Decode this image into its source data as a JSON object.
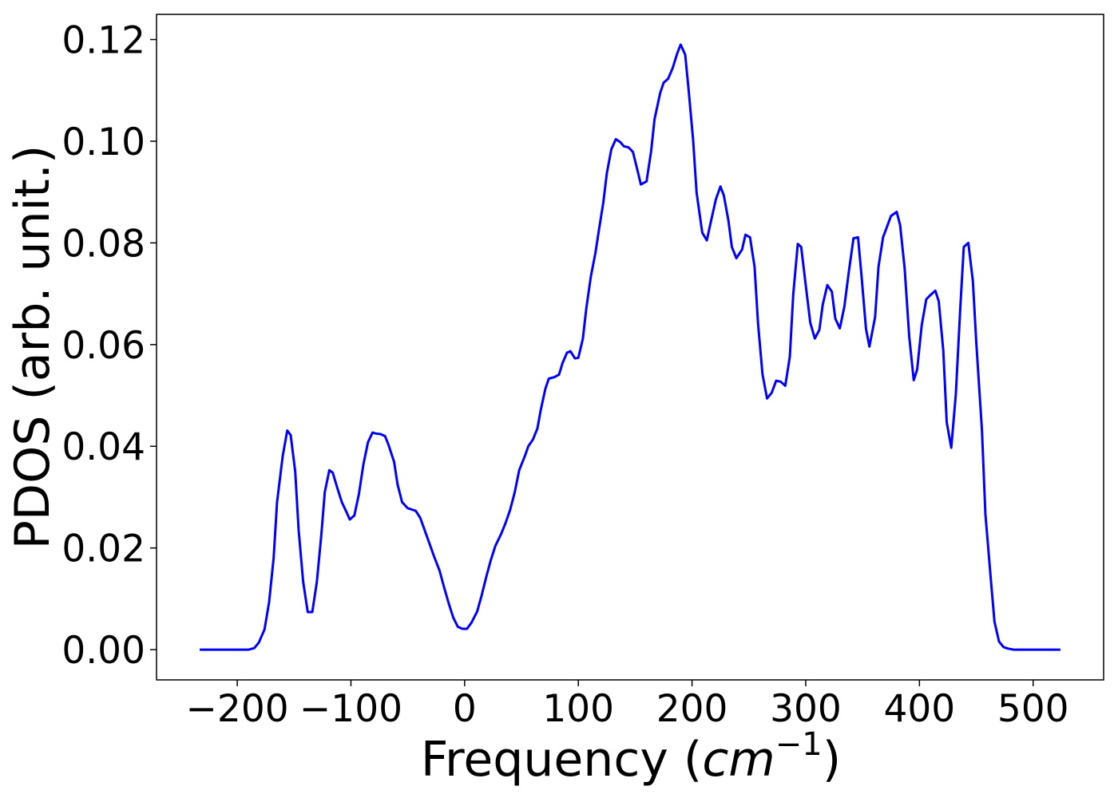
{
  "chart_data": {
    "type": "line",
    "xlabel": [
      "Frequency (",
      "cm",
      "−1",
      ")"
    ],
    "ylabel": "PDOS (arb. unit.)",
    "xlim": [
      -271,
      562
    ],
    "ylim": [
      -0.00595,
      0.12495
    ],
    "xticks": [
      {
        "value": -200,
        "label": "−200"
      },
      {
        "value": -100,
        "label": "−100"
      },
      0,
      100,
      200,
      300,
      400,
      500
    ],
    "yticks": [
      {
        "value": 0,
        "label": "0.00"
      },
      {
        "value": 0.02,
        "label": "0.02"
      },
      {
        "value": 0.04,
        "label": "0.04"
      },
      {
        "value": 0.06,
        "label": "0.06"
      },
      {
        "value": 0.08,
        "label": "0.08"
      },
      {
        "value": 0.1,
        "label": "0.10"
      },
      {
        "value": 0.12,
        "label": "0.12"
      }
    ],
    "grid": false,
    "x": [
      -233,
      -190,
      -185,
      -181,
      -176,
      -172,
      -168,
      -165,
      -160,
      -156,
      -153,
      -149,
      -146,
      -142,
      -138,
      -134,
      -130,
      -126,
      -123,
      -119,
      -116,
      -112,
      -108,
      -104,
      -101,
      -97,
      -93,
      -89,
      -85,
      -81,
      -78,
      -74,
      -70,
      -67,
      -62,
      -59,
      -55,
      -50,
      -47,
      -43,
      -39,
      -35,
      -31,
      -27,
      -22,
      -18,
      -14,
      -10,
      -6,
      -2,
      2,
      6,
      11,
      15,
      19,
      23,
      27,
      32,
      36,
      40,
      44,
      48,
      53,
      56,
      60,
      64,
      67,
      71,
      74,
      79,
      83,
      86,
      90,
      93,
      97,
      100,
      104,
      107,
      111,
      115,
      118,
      122,
      125,
      129,
      133,
      137,
      140,
      144,
      148,
      151,
      155,
      160,
      164,
      167,
      172,
      175,
      179,
      183,
      187,
      190,
      194,
      197,
      201,
      204,
      209,
      213,
      216,
      221,
      225,
      228,
      232,
      235,
      239,
      244,
      247,
      251,
      255,
      258,
      262,
      266,
      270,
      274,
      278,
      282,
      286,
      289,
      293,
      296,
      300,
      304,
      308,
      312,
      315,
      319,
      323,
      326,
      330,
      334,
      338,
      342,
      346,
      349,
      353,
      356,
      361,
      364,
      368,
      372,
      375,
      380,
      383,
      387,
      391,
      395,
      398,
      402,
      406,
      409,
      414,
      417,
      421,
      424,
      428,
      432,
      436,
      439,
      443,
      447,
      450,
      455,
      458,
      463,
      466,
      470,
      474,
      478,
      483,
      524
    ],
    "series": [
      {
        "name": "PDOS",
        "color": "#0000ff",
        "values": [
          0,
          0,
          0.0003,
          0.0014,
          0.004,
          0.0093,
          0.018,
          0.029,
          0.0381,
          0.0431,
          0.0422,
          0.035,
          0.0235,
          0.0133,
          0.0074,
          0.0074,
          0.0133,
          0.0227,
          0.031,
          0.0353,
          0.0348,
          0.0318,
          0.029,
          0.0271,
          0.0256,
          0.0264,
          0.0306,
          0.0365,
          0.0408,
          0.0427,
          0.0425,
          0.0424,
          0.042,
          0.0403,
          0.0369,
          0.0325,
          0.029,
          0.0278,
          0.0276,
          0.0273,
          0.0259,
          0.0234,
          0.0209,
          0.0184,
          0.0155,
          0.0122,
          0.0091,
          0.0063,
          0.0045,
          0.0041,
          0.0041,
          0.0053,
          0.0075,
          0.0107,
          0.0143,
          0.0176,
          0.0204,
          0.0227,
          0.0249,
          0.0275,
          0.0309,
          0.0353,
          0.0381,
          0.04,
          0.0413,
          0.0435,
          0.0472,
          0.0513,
          0.0533,
          0.0536,
          0.0541,
          0.0563,
          0.0584,
          0.0587,
          0.0573,
          0.0574,
          0.0612,
          0.0671,
          0.0734,
          0.078,
          0.0824,
          0.088,
          0.0936,
          0.0984,
          0.1004,
          0.0998,
          0.099,
          0.0988,
          0.0979,
          0.0952,
          0.0915,
          0.0921,
          0.098,
          0.1043,
          0.1095,
          0.1115,
          0.1123,
          0.1144,
          0.1173,
          0.119,
          0.117,
          0.1101,
          0.1001,
          0.0899,
          0.082,
          0.0805,
          0.0836,
          0.0886,
          0.0911,
          0.0893,
          0.0844,
          0.0792,
          0.077,
          0.0787,
          0.0816,
          0.0811,
          0.0753,
          0.0643,
          0.0541,
          0.0494,
          0.0505,
          0.0529,
          0.0527,
          0.0519,
          0.0576,
          0.0698,
          0.0798,
          0.0792,
          0.0717,
          0.0643,
          0.0612,
          0.0629,
          0.0679,
          0.0717,
          0.0704,
          0.0651,
          0.0632,
          0.0675,
          0.0745,
          0.0809,
          0.0811,
          0.0737,
          0.0631,
          0.0596,
          0.0654,
          0.0753,
          0.0811,
          0.0835,
          0.0853,
          0.0861,
          0.0835,
          0.075,
          0.0616,
          0.053,
          0.0551,
          0.0638,
          0.0689,
          0.0696,
          0.0706,
          0.0685,
          0.0588,
          0.0447,
          0.0397,
          0.0502,
          0.0675,
          0.0792,
          0.08,
          0.0725,
          0.0604,
          0.0431,
          0.0267,
          0.0133,
          0.0055,
          0.0016,
          0.0005,
          0.0002,
          0,
          0
        ]
      }
    ]
  }
}
